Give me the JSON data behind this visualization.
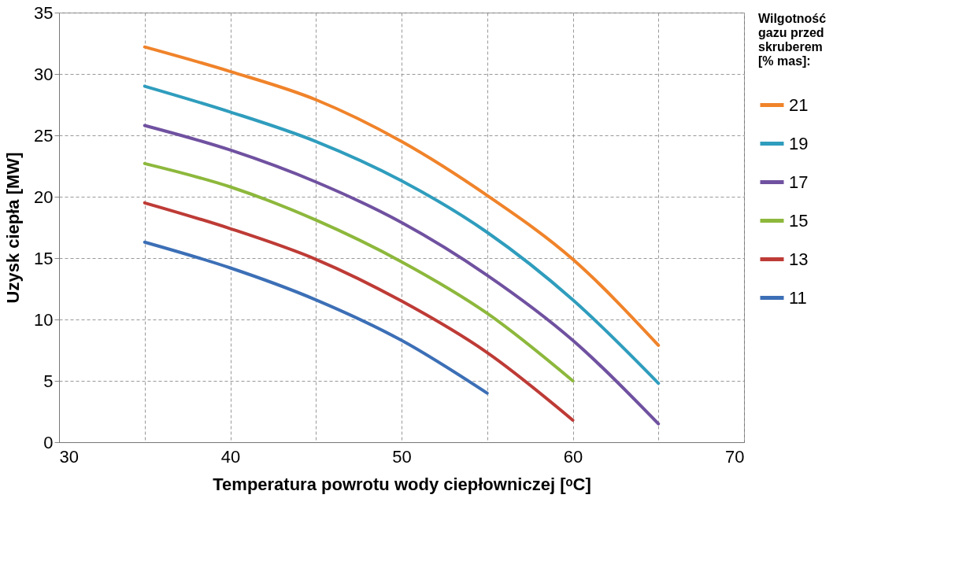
{
  "chart_data": {
    "type": "line",
    "xlabel": "Temperatura powrotu wody ciepłowniczej [ᵒC]",
    "ylabel": "Uzysk ciepła [MW]",
    "legend_title": "Wilgotność gazu przed skruberem [% mas]:",
    "xlim": [
      30,
      70
    ],
    "ylim": [
      0,
      35
    ],
    "xticks": [
      30,
      {
        "value": 35,
        "label": null
      },
      40,
      {
        "value": 45,
        "label": null
      },
      50,
      {
        "value": 55,
        "label": null
      },
      60,
      {
        "value": 65,
        "label": null
      },
      70
    ],
    "yticks": [
      0,
      5,
      10,
      15,
      20,
      25,
      30,
      35
    ],
    "grid": true,
    "legend": "right",
    "line_style": "solid",
    "marker": "none",
    "series": [
      {
        "name": "21",
        "color": "#f0832a",
        "x": [
          35,
          40,
          45,
          50,
          55,
          60,
          65
        ],
        "values": [
          32.2,
          30.2,
          27.9,
          24.5,
          20.1,
          14.9,
          7.9
        ]
      },
      {
        "name": "19",
        "color": "#2f9dbd",
        "x": [
          35,
          40,
          45,
          50,
          55,
          60,
          65
        ],
        "values": [
          29.0,
          26.9,
          24.5,
          21.3,
          17.1,
          11.6,
          4.8
        ]
      },
      {
        "name": "17",
        "color": "#7051a0",
        "x": [
          35,
          40,
          45,
          50,
          55,
          60,
          65
        ],
        "values": [
          25.8,
          23.8,
          21.2,
          17.9,
          13.6,
          8.3,
          1.5
        ]
      },
      {
        "name": "15",
        "color": "#8db83c",
        "x": [
          35,
          40,
          45,
          50,
          55,
          60
        ],
        "values": [
          22.7,
          20.8,
          18.1,
          14.7,
          10.5,
          5.0
        ]
      },
      {
        "name": "13",
        "color": "#be3b36",
        "x": [
          35,
          40,
          45,
          50,
          55,
          60
        ],
        "values": [
          19.5,
          17.4,
          14.9,
          11.5,
          7.3,
          1.8
        ]
      },
      {
        "name": "11",
        "color": "#3c6fb6",
        "x": [
          35,
          40,
          45,
          50,
          55
        ],
        "values": [
          16.3,
          14.2,
          11.6,
          8.3,
          4.0
        ]
      }
    ]
  }
}
